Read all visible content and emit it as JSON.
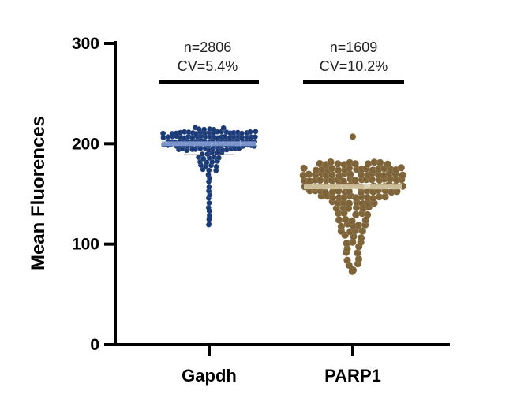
{
  "chart_data": {
    "type": "scatter",
    "subtype": "swarm (beeswarm) dot plot",
    "ylabel": "Mean Fluorences",
    "ylim": [
      0,
      300
    ],
    "yticks": [
      0,
      100,
      200,
      300
    ],
    "categories": [
      "Gapdh",
      "PARP1"
    ],
    "grid": false,
    "groups": [
      {
        "name": "Gapdh",
        "annotation_n": "n=2806",
        "annotation_cv": "CV=5.4%",
        "n": 2806,
        "cv_percent": 5.4,
        "mean": 200,
        "median": 202,
        "max": 218,
        "min": 120,
        "color": "#1b3a78",
        "mean_band_color": "#8ca3d9"
      },
      {
        "name": "PARP1",
        "annotation_n": "n=1609",
        "annotation_cv": "CV=10.2%",
        "n": 1609,
        "cv_percent": 10.2,
        "mean": 157,
        "median": 162,
        "max": 207,
        "min": 74,
        "color": "#7e6438",
        "mean_band_color": "#d9ccaa"
      }
    ]
  }
}
